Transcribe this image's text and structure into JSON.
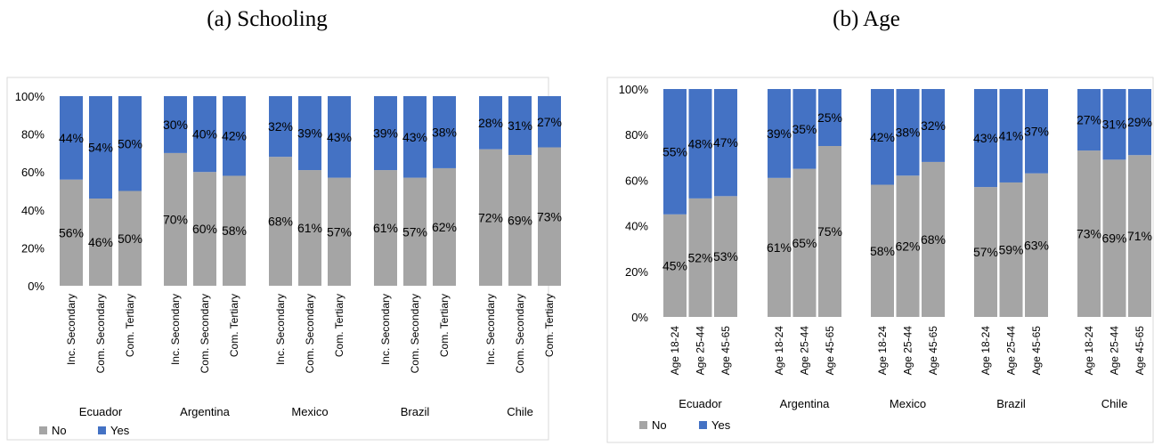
{
  "titles": {
    "left": "(a)  Schooling",
    "right": "(b) Age"
  },
  "colors": {
    "no": "#a5a5a5",
    "yes": "#4472c4"
  },
  "chart_data": [
    {
      "type": "bar",
      "stacked": true,
      "title": "(a)  Schooling",
      "groups": [
        "Ecuador",
        "Argentina",
        "Mexico",
        "Brazil",
        "Chile"
      ],
      "categories": [
        "Inc. Secondary",
        "Com. Secondary",
        "Com. Tertiary"
      ],
      "series": [
        {
          "name": "No",
          "values": [
            [
              56,
              46,
              50
            ],
            [
              70,
              60,
              58
            ],
            [
              68,
              61,
              57
            ],
            [
              61,
              57,
              62
            ],
            [
              72,
              69,
              73
            ]
          ]
        },
        {
          "name": "Yes",
          "values": [
            [
              44,
              54,
              50
            ],
            [
              30,
              40,
              42
            ],
            [
              32,
              39,
              43
            ],
            [
              39,
              43,
              38
            ],
            [
              28,
              31,
              27
            ]
          ]
        }
      ],
      "yticks": [
        "0%",
        "20%",
        "40%",
        "60%",
        "80%",
        "100%"
      ],
      "ylim": [
        0,
        100
      ],
      "legend_position": "bottom-left",
      "grid": false
    },
    {
      "type": "bar",
      "stacked": true,
      "title": "(b) Age",
      "groups": [
        "Ecuador",
        "Argentina",
        "Mexico",
        "Brazil",
        "Chile"
      ],
      "categories": [
        "Age 18-24",
        "Age 25-44",
        "Age 45-65"
      ],
      "series": [
        {
          "name": "No",
          "values": [
            [
              45,
              52,
              53
            ],
            [
              61,
              65,
              75
            ],
            [
              58,
              62,
              68
            ],
            [
              57,
              59,
              63
            ],
            [
              73,
              69,
              71
            ]
          ]
        },
        {
          "name": "Yes",
          "values": [
            [
              55,
              48,
              47
            ],
            [
              39,
              35,
              25
            ],
            [
              42,
              38,
              32
            ],
            [
              43,
              41,
              37
            ],
            [
              27,
              31,
              29
            ]
          ]
        }
      ],
      "yticks": [
        "0%",
        "20%",
        "40%",
        "60%",
        "80%",
        "100%"
      ],
      "ylim": [
        0,
        100
      ],
      "legend_position": "bottom-left",
      "grid": false
    }
  ]
}
